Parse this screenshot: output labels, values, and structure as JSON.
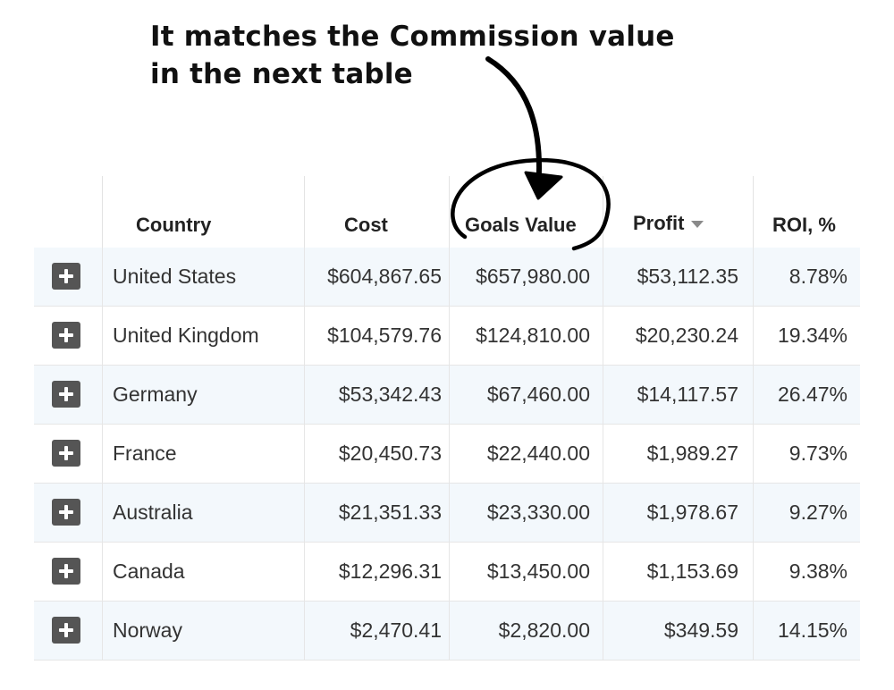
{
  "annotation": {
    "line1": "It matches the Commission value",
    "line2": "in the next table"
  },
  "table": {
    "columns": {
      "country": "Country",
      "cost": "Cost",
      "goals_value": "Goals Value",
      "profit": "Profit",
      "roi": "ROI, %"
    },
    "rows": [
      {
        "country": "United States",
        "cost": "$604,867.65",
        "goals_value": "$657,980.00",
        "profit": "$53,112.35",
        "roi": "8.78%"
      },
      {
        "country": "United Kingdom",
        "cost": "$104,579.76",
        "goals_value": "$124,810.00",
        "profit": "$20,230.24",
        "roi": "19.34%"
      },
      {
        "country": "Germany",
        "cost": "$53,342.43",
        "goals_value": "$67,460.00",
        "profit": "$14,117.57",
        "roi": "26.47%"
      },
      {
        "country": "France",
        "cost": "$20,450.73",
        "goals_value": "$22,440.00",
        "profit": "$1,989.27",
        "roi": "9.73%"
      },
      {
        "country": "Australia",
        "cost": "$21,351.33",
        "goals_value": "$23,330.00",
        "profit": "$1,978.67",
        "roi": "9.27%"
      },
      {
        "country": "Canada",
        "cost": "$12,296.31",
        "goals_value": "$13,450.00",
        "profit": "$1,153.69",
        "roi": "9.38%"
      },
      {
        "country": "Norway",
        "cost": "$2,470.41",
        "goals_value": "$2,820.00",
        "profit": "$349.59",
        "roi": "14.15%"
      }
    ]
  }
}
